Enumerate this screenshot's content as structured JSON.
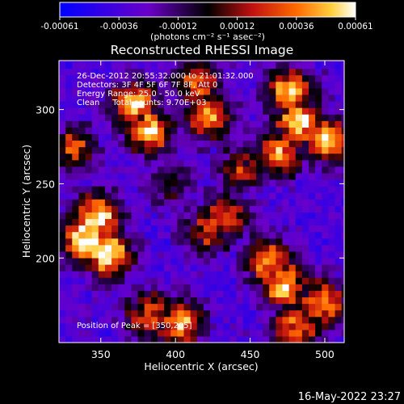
{
  "colorbar": {
    "ticks": [
      "-0.00061",
      "-0.00036",
      "-0.00012",
      "0.00012",
      "0.00036",
      "0.00061"
    ],
    "units_text": "(photons cm⁻² s⁻¹ asec⁻²)",
    "range": [
      -0.00061,
      0.00061
    ],
    "colors": [
      "#0000ff",
      "#6a00c8",
      "#000000",
      "#c01010",
      "#ff6a00",
      "#ffd040",
      "#ffffff"
    ]
  },
  "chart_data": {
    "type": "heatmap",
    "title": "Reconstructed RHESSI Image",
    "xlabel": "Heliocentric X (arcsec)",
    "ylabel": "Heliocentric Y (arcsec)",
    "xlim": [
      322,
      513
    ],
    "ylim": [
      143,
      333
    ],
    "xticks": [
      350,
      400,
      450,
      500
    ],
    "yticks": [
      200,
      250,
      300
    ],
    "annotations": [
      "26-Dec-2012 20:55:32.000 to 21:01:32.000",
      "Detectors: 3F 4F 5F 6F 7F 8F, Att 0",
      "Energy Range: 25.0 - 50.0 keV",
      "Clean     Total counts: 9.70E+03"
    ],
    "peak_label": "Position of Peak = [350,205]",
    "bright_regions": [
      {
        "x": 338,
        "y": 210,
        "level": 1.0
      },
      {
        "x": 352,
        "y": 201,
        "level": 0.95
      },
      {
        "x": 345,
        "y": 226,
        "level": 0.9
      },
      {
        "x": 370,
        "y": 302,
        "level": 0.8
      },
      {
        "x": 380,
        "y": 284,
        "level": 0.85
      },
      {
        "x": 420,
        "y": 293,
        "level": 0.7
      },
      {
        "x": 412,
        "y": 316,
        "level": 0.6
      },
      {
        "x": 475,
        "y": 310,
        "level": 0.85
      },
      {
        "x": 480,
        "y": 290,
        "level": 0.9
      },
      {
        "x": 500,
        "y": 278,
        "level": 0.85
      },
      {
        "x": 468,
        "y": 270,
        "level": 0.75
      },
      {
        "x": 460,
        "y": 196,
        "level": 0.75
      },
      {
        "x": 470,
        "y": 180,
        "level": 0.85
      },
      {
        "x": 496,
        "y": 168,
        "level": 0.8
      },
      {
        "x": 478,
        "y": 152,
        "level": 0.7
      },
      {
        "x": 432,
        "y": 226,
        "level": 0.6
      },
      {
        "x": 420,
        "y": 217,
        "level": 0.55
      },
      {
        "x": 400,
        "y": 154,
        "level": 0.8
      },
      {
        "x": 380,
        "y": 160,
        "level": 0.6
      },
      {
        "x": 330,
        "y": 272,
        "level": 0.55
      },
      {
        "x": 442,
        "y": 258,
        "level": 0.5
      },
      {
        "x": 395,
        "y": 248,
        "level": 0.35
      }
    ]
  },
  "timestamp": "16-May-2022 23:27"
}
